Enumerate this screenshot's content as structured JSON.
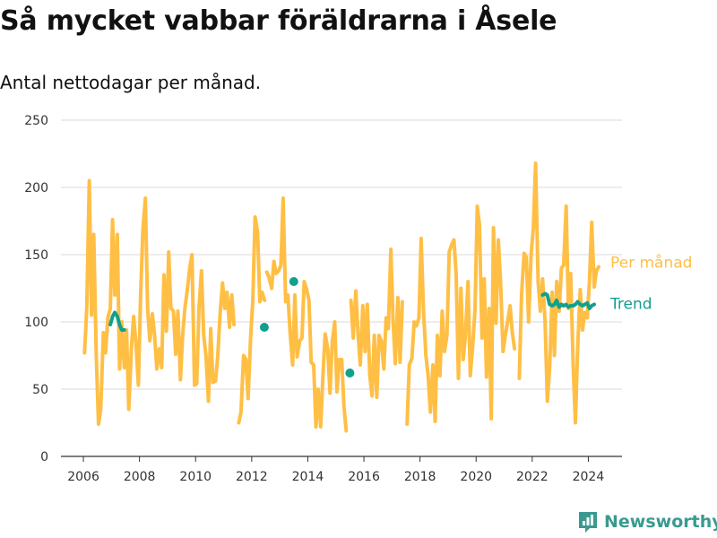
{
  "title": "Så mycket vabbar föräldrarna i Åsele",
  "subtitle": "Antal nettodagar per månad.",
  "brand": "Newsworthy",
  "chart_data": {
    "type": "line",
    "xlim": [
      2005.2,
      2025.2
    ],
    "ylim": [
      0,
      250
    ],
    "y_ticks": [
      0,
      50,
      100,
      150,
      200,
      250
    ],
    "x_ticks": [
      2006,
      2008,
      2010,
      2012,
      2014,
      2016,
      2018,
      2020,
      2022,
      2024
    ],
    "grid": "horizontal",
    "legend": "right-inline",
    "colors": {
      "monthly": "#ffbf45",
      "trend": "#12a08e"
    },
    "series": [
      {
        "name": "Per månad",
        "segments": [
          [
            [
              2006.04,
              77
            ],
            [
              2006.12,
              110
            ],
            [
              2006.21,
              205
            ],
            [
              2006.29,
              105
            ],
            [
              2006.37,
              165
            ],
            [
              2006.46,
              75
            ],
            [
              2006.54,
              24
            ],
            [
              2006.62,
              35
            ],
            [
              2006.71,
              92
            ],
            [
              2006.79,
              77
            ],
            [
              2006.87,
              103
            ],
            [
              2006.96,
              110
            ],
            [
              2007.04,
              176
            ],
            [
              2007.12,
              120
            ],
            [
              2007.21,
              165
            ],
            [
              2007.29,
              65
            ],
            [
              2007.37,
              100
            ],
            [
              2007.46,
              66
            ],
            [
              2007.54,
              94
            ],
            [
              2007.62,
              35
            ],
            [
              2007.71,
              80
            ],
            [
              2007.79,
              104
            ],
            [
              2007.87,
              85
            ],
            [
              2007.96,
              53
            ],
            [
              2008.04,
              120
            ],
            [
              2008.12,
              168
            ],
            [
              2008.21,
              192
            ],
            [
              2008.29,
              110
            ],
            [
              2008.37,
              86
            ],
            [
              2008.46,
              106
            ],
            [
              2008.54,
              90
            ],
            [
              2008.62,
              65
            ],
            [
              2008.71,
              80
            ],
            [
              2008.79,
              66
            ],
            [
              2008.87,
              135
            ],
            [
              2008.96,
              93
            ],
            [
              2009.04,
              152
            ],
            [
              2009.12,
              110
            ],
            [
              2009.21,
              108
            ],
            [
              2009.29,
              76
            ],
            [
              2009.37,
              108
            ],
            [
              2009.46,
              57
            ],
            [
              2009.54,
              90
            ],
            [
              2009.62,
              110
            ],
            [
              2009.71,
              125
            ],
            [
              2009.79,
              140
            ],
            [
              2009.87,
              150
            ],
            [
              2009.96,
              53
            ],
            [
              2010.04,
              54
            ],
            [
              2010.12,
              110
            ],
            [
              2010.21,
              138
            ],
            [
              2010.29,
              90
            ],
            [
              2010.37,
              75
            ],
            [
              2010.46,
              41
            ],
            [
              2010.54,
              95
            ],
            [
              2010.62,
              55
            ],
            [
              2010.71,
              56
            ],
            [
              2010.79,
              75
            ],
            [
              2010.87,
              105
            ],
            [
              2010.96,
              129
            ],
            [
              2011.04,
              110
            ],
            [
              2011.12,
              122
            ],
            [
              2011.21,
              96
            ],
            [
              2011.29,
              120
            ],
            [
              2011.37,
              98
            ]
          ],
          [
            [
              2011.54,
              25
            ],
            [
              2011.62,
              33
            ],
            [
              2011.71,
              75
            ],
            [
              2011.79,
              72
            ],
            [
              2011.87,
              43
            ],
            [
              2011.96,
              88
            ],
            [
              2012.04,
              116
            ],
            [
              2012.12,
              178
            ],
            [
              2012.21,
              167
            ],
            [
              2012.29,
              115
            ],
            [
              2012.37,
              122
            ],
            [
              2012.46,
              116
            ]
          ],
          [
            [
              2012.54,
              137
            ],
            [
              2012.62,
              133
            ],
            [
              2012.71,
              125
            ],
            [
              2012.79,
              145
            ],
            [
              2012.87,
              136
            ],
            [
              2012.96,
              138
            ],
            [
              2013.04,
              142
            ],
            [
              2013.12,
              192
            ],
            [
              2013.21,
              115
            ],
            [
              2013.29,
              120
            ],
            [
              2013.37,
              92
            ],
            [
              2013.46,
              68
            ],
            [
              2013.54,
              120
            ],
            [
              2013.62,
              74
            ],
            [
              2013.71,
              86
            ],
            [
              2013.79,
              88
            ],
            [
              2013.87,
              130
            ],
            [
              2013.96,
              124
            ],
            [
              2014.04,
              116
            ],
            [
              2014.12,
              70
            ],
            [
              2014.21,
              68
            ],
            [
              2014.29,
              22
            ],
            [
              2014.37,
              50
            ],
            [
              2014.46,
              22
            ],
            [
              2014.54,
              60
            ],
            [
              2014.62,
              91
            ],
            [
              2014.71,
              80
            ],
            [
              2014.79,
              47
            ],
            [
              2014.87,
              85
            ],
            [
              2014.96,
              100
            ],
            [
              2015.04,
              48
            ],
            [
              2015.12,
              72
            ],
            [
              2015.21,
              72
            ],
            [
              2015.29,
              37
            ],
            [
              2015.37,
              19
            ]
          ],
          [
            [
              2015.54,
              116
            ],
            [
              2015.62,
              88
            ],
            [
              2015.71,
              123
            ],
            [
              2015.79,
              91
            ],
            [
              2015.87,
              68
            ],
            [
              2015.96,
              112
            ],
            [
              2016.04,
              78
            ],
            [
              2016.12,
              113
            ],
            [
              2016.21,
              60
            ],
            [
              2016.29,
              45
            ],
            [
              2016.37,
              90
            ],
            [
              2016.46,
              44
            ],
            [
              2016.54,
              90
            ],
            [
              2016.62,
              86
            ],
            [
              2016.71,
              65
            ],
            [
              2016.79,
              103
            ],
            [
              2016.87,
              95
            ],
            [
              2016.96,
              154
            ],
            [
              2017.04,
              100
            ],
            [
              2017.12,
              69
            ],
            [
              2017.21,
              118
            ],
            [
              2017.29,
              70
            ],
            [
              2017.37,
              115
            ]
          ],
          [
            [
              2017.54,
              24
            ],
            [
              2017.62,
              68
            ],
            [
              2017.71,
              73
            ],
            [
              2017.79,
              100
            ],
            [
              2017.87,
              97
            ],
            [
              2017.96,
              103
            ],
            [
              2018.04,
              162
            ],
            [
              2018.12,
              110
            ],
            [
              2018.21,
              75
            ],
            [
              2018.29,
              60
            ],
            [
              2018.37,
              33
            ],
            [
              2018.46,
              68
            ],
            [
              2018.54,
              26
            ],
            [
              2018.62,
              90
            ],
            [
              2018.71,
              60
            ],
            [
              2018.79,
              108
            ],
            [
              2018.87,
              78
            ],
            [
              2018.96,
              90
            ],
            [
              2019.04,
              152
            ],
            [
              2019.12,
              157
            ],
            [
              2019.21,
              161
            ],
            [
              2019.29,
              135
            ],
            [
              2019.37,
              58
            ],
            [
              2019.46,
              125
            ],
            [
              2019.54,
              72
            ],
            [
              2019.62,
              90
            ],
            [
              2019.71,
              130
            ],
            [
              2019.79,
              60
            ],
            [
              2019.87,
              80
            ],
            [
              2019.96,
              109
            ],
            [
              2020.04,
              186
            ],
            [
              2020.12,
              172
            ],
            [
              2020.21,
              88
            ],
            [
              2020.29,
              132
            ],
            [
              2020.37,
              59
            ],
            [
              2020.46,
              110
            ],
            [
              2020.54,
              28
            ],
            [
              2020.62,
              170
            ],
            [
              2020.71,
              99
            ],
            [
              2020.79,
              161
            ],
            [
              2020.87,
              130
            ],
            [
              2020.96,
              78
            ],
            [
              2021.04,
              90
            ],
            [
              2021.12,
              100
            ],
            [
              2021.21,
              112
            ],
            [
              2021.29,
              92
            ],
            [
              2021.37,
              80
            ]
          ],
          [
            [
              2021.54,
              58
            ],
            [
              2021.62,
              120
            ],
            [
              2021.71,
              151
            ],
            [
              2021.79,
              148
            ],
            [
              2021.87,
              100
            ],
            [
              2021.96,
              150
            ],
            [
              2022.04,
              170
            ],
            [
              2022.12,
              218
            ],
            [
              2022.21,
              130
            ],
            [
              2022.29,
              108
            ],
            [
              2022.37,
              132
            ],
            [
              2022.46,
              100
            ],
            [
              2022.54,
              41
            ],
            [
              2022.62,
              65
            ],
            [
              2022.71,
              122
            ],
            [
              2022.79,
              75
            ],
            [
              2022.87,
              130
            ],
            [
              2022.96,
              108
            ],
            [
              2023.04,
              140
            ],
            [
              2023.12,
              142
            ],
            [
              2023.21,
              186
            ],
            [
              2023.29,
              110
            ],
            [
              2023.37,
              136
            ],
            [
              2023.46,
              68
            ],
            [
              2023.54,
              25
            ],
            [
              2023.62,
              80
            ],
            [
              2023.71,
              124
            ],
            [
              2023.79,
              94
            ],
            [
              2023.87,
              107
            ],
            [
              2023.96,
              103
            ],
            [
              2024.04,
              130
            ],
            [
              2024.12,
              174
            ],
            [
              2024.21,
              126
            ],
            [
              2024.29,
              138
            ],
            [
              2024.37,
              141
            ]
          ]
        ]
      },
      {
        "name": "Trend",
        "segments": [
          [
            [
              2006.96,
              98
            ],
            [
              2007.04,
              104
            ],
            [
              2007.12,
              107
            ],
            [
              2007.21,
              104
            ],
            [
              2007.29,
              98
            ],
            [
              2007.37,
              94
            ],
            [
              2007.46,
              94
            ]
          ],
          [
            [
              2022.37,
              120
            ],
            [
              2022.46,
              121
            ],
            [
              2022.54,
              120
            ],
            [
              2022.62,
              113
            ],
            [
              2022.71,
              112
            ],
            [
              2022.79,
              113
            ],
            [
              2022.87,
              116
            ],
            [
              2022.96,
              111
            ],
            [
              2023.04,
              113
            ],
            [
              2023.12,
              112
            ],
            [
              2023.21,
              113
            ],
            [
              2023.29,
              111
            ],
            [
              2023.37,
              112
            ],
            [
              2023.46,
              112
            ],
            [
              2023.54,
              113
            ],
            [
              2023.62,
              115
            ],
            [
              2023.71,
              113
            ],
            [
              2023.79,
              112
            ],
            [
              2023.87,
              113
            ],
            [
              2023.96,
              114
            ],
            [
              2024.04,
              110
            ],
            [
              2024.12,
              112
            ],
            [
              2024.21,
              113
            ]
          ]
        ],
        "points": [
          [
            2012.45,
            96
          ],
          [
            2013.5,
            130
          ],
          [
            2015.5,
            62
          ]
        ]
      }
    ]
  }
}
